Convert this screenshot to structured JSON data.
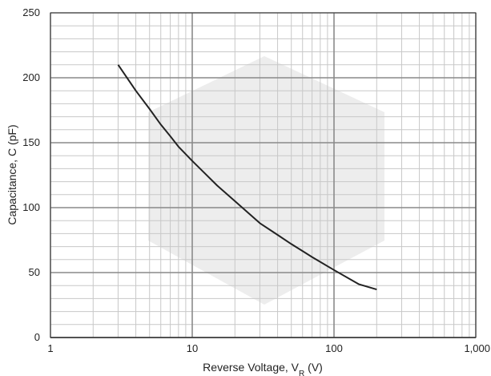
{
  "chart_data": {
    "type": "line",
    "xlabel": "Reverse Voltage, V",
    "xlabel_sub": "R",
    "xlabel_unit": " (V)",
    "ylabel": "Capacitance, C (pF)",
    "x_scale": "log",
    "xlim": [
      1,
      1000
    ],
    "ylim": [
      0,
      250
    ],
    "grid": true,
    "x_tick_labels": [
      "1",
      "10",
      "100",
      "1,000"
    ],
    "x_ticks": [
      1,
      10,
      100,
      1000
    ],
    "y_ticks": [
      0,
      50,
      100,
      150,
      200,
      250
    ],
    "y_tick_labels": [
      "0",
      "50",
      "100",
      "150",
      "200",
      "250"
    ],
    "series": [
      {
        "color": "#222222",
        "x": [
          3,
          4,
          5,
          6,
          7,
          8,
          10,
          15,
          20,
          30,
          40,
          50,
          70,
          100,
          150,
          200
        ],
        "y": [
          210,
          190,
          176,
          164,
          155,
          147,
          136,
          117,
          105,
          88,
          79,
          72,
          62,
          52,
          41,
          37
        ]
      }
    ]
  }
}
